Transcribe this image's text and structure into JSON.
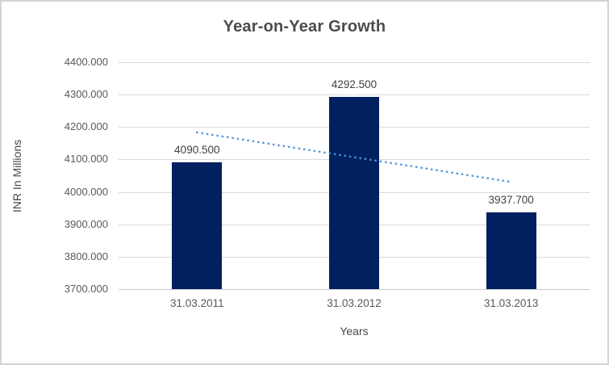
{
  "chart_data": {
    "type": "bar",
    "title": "Year-on-Year Growth",
    "xlabel": "Years",
    "ylabel": "INR In Millions",
    "categories": [
      "31.03.2011",
      "31.03.2012",
      "31.03.2013"
    ],
    "values": [
      4090.5,
      4292.5,
      3937.7
    ],
    "data_labels": [
      "4090.500",
      "4292.500",
      "3937.700"
    ],
    "y_ticks": [
      3700,
      3800,
      3900,
      4000,
      4100,
      4200,
      4300,
      4400
    ],
    "y_tick_labels": [
      "3700.000",
      "3800.000",
      "3900.000",
      "4000.000",
      "4100.000",
      "4200.000",
      "4300.000",
      "4400.000"
    ],
    "ylim": [
      3700,
      4400
    ],
    "grid": "horizontal-major",
    "legend": "none",
    "trendline": {
      "type": "linear",
      "style": "dotted",
      "start_value": 4183.3,
      "end_value": 4030.5
    },
    "colors": {
      "bar": "#002060",
      "trendline": "#4F93D8",
      "gridline": "#D9D9D9",
      "axis_line": "#C9C9C9",
      "title_text": "#4C4C4C",
      "tick_text": "#595959",
      "label_text": "#404040",
      "border": "#D3D3D3",
      "background": "#FFFFFF"
    }
  }
}
